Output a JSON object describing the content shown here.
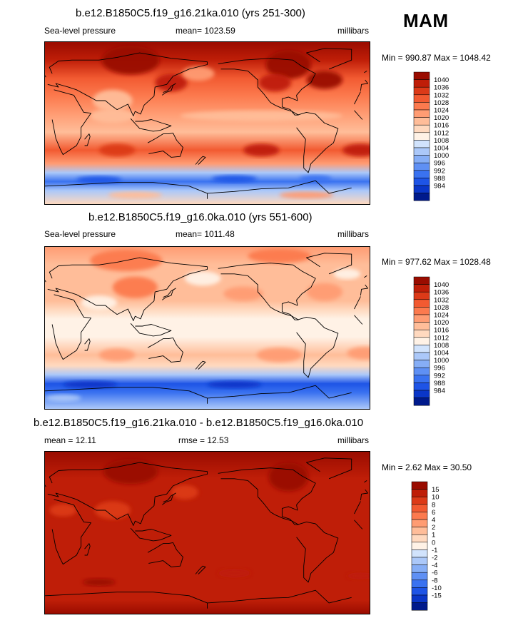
{
  "season": "MAM",
  "units": "millibars",
  "colors": {
    "slp_scale": [
      "#001a8c",
      "#0a36c8",
      "#1e54e6",
      "#3a72f0",
      "#5f90f4",
      "#86aef6",
      "#abc8f9",
      "#d1e3fc",
      "#fff2e6",
      "#ffd9bf",
      "#ffbd99",
      "#ff9c73",
      "#fc7a4e",
      "#f25a31",
      "#dc3a18",
      "#bf1e08",
      "#9a0c00"
    ],
    "diff_scale": [
      "#001a8c",
      "#0a36c8",
      "#1e54e6",
      "#3a72f0",
      "#5f90f4",
      "#86aef6",
      "#abc8f9",
      "#d1e3fc",
      "#fff2e6",
      "#ffd9bf",
      "#ffbd99",
      "#ff9c73",
      "#fc7a4e",
      "#f25a31",
      "#dc3a18",
      "#bf1e08",
      "#9a0c00"
    ],
    "coastline": "#000000"
  },
  "chart_data": [
    {
      "type": "heatmap",
      "title": "b.e12.B1850C5.f19_g16.21ka.010 (yrs 251-300)",
      "variable": "Sea-level pressure",
      "mean_label": "mean= 1023.59",
      "units": "millibars",
      "minmax_label": "Min = 990.87 Max = 1048.42",
      "min": 990.87,
      "max": 1048.42,
      "colorbar_levels": [
        "1040",
        "1036",
        "1032",
        "1028",
        "1024",
        "1020",
        "1016",
        "1012",
        "1008",
        "1004",
        "1000",
        "996",
        "992",
        "988",
        "984"
      ],
      "lat_profile": [
        {
          "lat": 90,
          "value": 1041
        },
        {
          "lat": 70,
          "value": 1036
        },
        {
          "lat": 50,
          "value": 1030
        },
        {
          "lat": 30,
          "value": 1026
        },
        {
          "lat": 10,
          "value": 1020
        },
        {
          "lat": -10,
          "value": 1019
        },
        {
          "lat": -30,
          "value": 1030
        },
        {
          "lat": -45,
          "value": 1022
        },
        {
          "lat": -55,
          "value": 1002
        },
        {
          "lat": -65,
          "value": 990
        },
        {
          "lat": -75,
          "value": 1000
        },
        {
          "lat": -90,
          "value": 1012
        }
      ],
      "features": [
        {
          "lon": 95,
          "lat": 70,
          "rx": 32,
          "ry": 16,
          "value": 1046
        },
        {
          "lon": -90,
          "lat": 65,
          "rx": 25,
          "ry": 16,
          "value": 1046
        },
        {
          "lon": -50,
          "lat": 48,
          "rx": 20,
          "ry": 10,
          "value": 1040
        },
        {
          "lon": -105,
          "lat": 45,
          "rx": 18,
          "ry": 10,
          "value": 1036
        },
        {
          "lon": 140,
          "lat": 45,
          "rx": 18,
          "ry": 10,
          "value": 1038
        },
        {
          "lon": 170,
          "lat": 55,
          "rx": 18,
          "ry": 8,
          "value": 1020
        },
        {
          "lon": 75,
          "lat": 25,
          "rx": 22,
          "ry": 12,
          "value": 1016
        },
        {
          "lon": 75,
          "lat": 8,
          "rx": 25,
          "ry": 8,
          "value": 1016
        },
        {
          "lon": -120,
          "lat": 8,
          "rx": 90,
          "ry": 6,
          "value": 1016
        },
        {
          "lon": -120,
          "lat": -30,
          "rx": 20,
          "ry": 7,
          "value": 1036
        },
        {
          "lon": -10,
          "lat": -30,
          "rx": 20,
          "ry": 7,
          "value": 1036
        },
        {
          "lon": 80,
          "lat": -30,
          "rx": 20,
          "ry": 7,
          "value": 1034
        },
        {
          "lon": -150,
          "lat": -62,
          "rx": 25,
          "ry": 4,
          "value": 986
        },
        {
          "lon": 60,
          "lat": -63,
          "rx": 25,
          "ry": 4,
          "value": 986
        },
        {
          "lon": -60,
          "lat": -62,
          "rx": 18,
          "ry": 4,
          "value": 988
        },
        {
          "lon": -70,
          "lat": -80,
          "rx": 30,
          "ry": 4,
          "value": 1020
        },
        {
          "lon": 100,
          "lat": -80,
          "rx": 30,
          "ry": 4,
          "value": 1016
        }
      ]
    },
    {
      "type": "heatmap",
      "title": "b.e12.B1850C5.f19_g16.0ka.010 (yrs 551-600)",
      "variable": "Sea-level pressure",
      "mean_label": "mean= 1011.48",
      "units": "millibars",
      "minmax_label": "Min = 977.62 Max = 1028.48",
      "min": 977.62,
      "max": 1028.48,
      "colorbar_levels": [
        "1040",
        "1036",
        "1032",
        "1028",
        "1024",
        "1020",
        "1016",
        "1012",
        "1008",
        "1004",
        "1000",
        "996",
        "992",
        "988",
        "984"
      ],
      "lat_profile": [
        {
          "lat": 90,
          "value": 1020
        },
        {
          "lat": 70,
          "value": 1018
        },
        {
          "lat": 50,
          "value": 1016
        },
        {
          "lat": 30,
          "value": 1016
        },
        {
          "lat": 20,
          "value": 1014
        },
        {
          "lat": 10,
          "value": 1011
        },
        {
          "lat": -10,
          "value": 1010
        },
        {
          "lat": -30,
          "value": 1016
        },
        {
          "lat": -42,
          "value": 1014
        },
        {
          "lat": -52,
          "value": 1000
        },
        {
          "lat": -62,
          "value": 986
        },
        {
          "lat": -72,
          "value": 990
        },
        {
          "lat": -90,
          "value": 1002
        }
      ],
      "features": [
        {
          "lon": 90,
          "lat": 75,
          "rx": 40,
          "ry": 12,
          "value": 1024
        },
        {
          "lon": -100,
          "lat": 80,
          "rx": 35,
          "ry": 8,
          "value": 1024
        },
        {
          "lon": -50,
          "lat": 40,
          "rx": 20,
          "ry": 10,
          "value": 1022
        },
        {
          "lon": -140,
          "lat": 38,
          "rx": 22,
          "ry": 8,
          "value": 1022
        },
        {
          "lon": 100,
          "lat": 45,
          "rx": 25,
          "ry": 12,
          "value": 1024
        },
        {
          "lon": 60,
          "lat": 28,
          "rx": 20,
          "ry": 8,
          "value": 1008
        },
        {
          "lon": 175,
          "lat": 55,
          "rx": 20,
          "ry": 8,
          "value": 1008
        },
        {
          "lon": -25,
          "lat": 60,
          "rx": 15,
          "ry": 6,
          "value": 1008
        },
        {
          "lon": -100,
          "lat": -30,
          "rx": 25,
          "ry": 8,
          "value": 1020
        },
        {
          "lon": -5,
          "lat": -28,
          "rx": 20,
          "ry": 7,
          "value": 1020
        },
        {
          "lon": 80,
          "lat": -30,
          "rx": 20,
          "ry": 7,
          "value": 1020
        },
        {
          "lon": -150,
          "lat": -63,
          "rx": 30,
          "ry": 4,
          "value": 980
        },
        {
          "lon": 50,
          "lat": -63,
          "rx": 30,
          "ry": 4,
          "value": 980
        },
        {
          "lon": 20,
          "lat": -78,
          "rx": 20,
          "ry": 4,
          "value": 1000
        }
      ]
    },
    {
      "type": "heatmap",
      "title": "b.e12.B1850C5.f19_g16.21ka.010 - b.e12.B1850C5.f19_g16.0ka.010",
      "mean_label": "mean =  12.11",
      "rmse_label": "rmse =  12.53",
      "units": "millibars",
      "minmax_label": "Min =   2.62 Max =  30.50",
      "min": 2.62,
      "max": 30.5,
      "colorbar_levels": [
        "15",
        "10",
        "8",
        "6",
        "4",
        "2",
        "1",
        "0",
        "-1",
        "-2",
        "-4",
        "-6",
        "-8",
        "-10",
        "-15"
      ],
      "lat_profile": [
        {
          "lat": 90,
          "value": 20
        },
        {
          "lat": 60,
          "value": 14
        },
        {
          "lat": 30,
          "value": 11
        },
        {
          "lat": 0,
          "value": 10
        },
        {
          "lat": -30,
          "value": 11
        },
        {
          "lat": -60,
          "value": 12
        },
        {
          "lat": -75,
          "value": 14
        },
        {
          "lat": -90,
          "value": 16
        }
      ],
      "features": [
        {
          "lon": 95,
          "lat": 68,
          "rx": 30,
          "ry": 14,
          "value": 20
        },
        {
          "lon": -90,
          "lat": 62,
          "rx": 22,
          "ry": 16,
          "value": 22
        },
        {
          "lon": 155,
          "lat": 45,
          "rx": 15,
          "ry": 8,
          "value": 9
        },
        {
          "lon": 75,
          "lat": 25,
          "rx": 20,
          "ry": 10,
          "value": 8
        },
        {
          "lon": 20,
          "lat": 25,
          "rx": 15,
          "ry": 7,
          "value": 9
        },
        {
          "lon": -150,
          "lat": -45,
          "rx": 18,
          "ry": 5,
          "value": 14
        },
        {
          "lon": -10,
          "lat": -48,
          "rx": 15,
          "ry": 4,
          "value": 14
        },
        {
          "lon": 60,
          "lat": -55,
          "rx": 18,
          "ry": 4,
          "value": 15
        }
      ]
    }
  ]
}
